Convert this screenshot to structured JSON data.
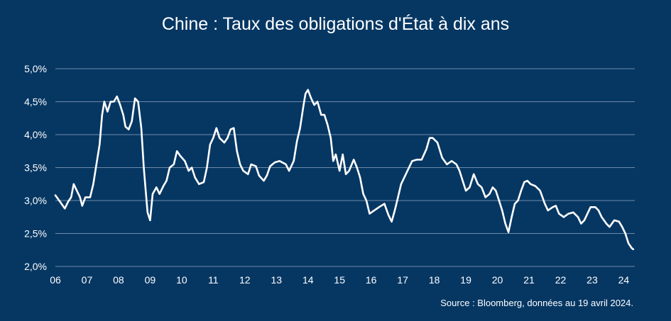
{
  "colors": {
    "background": "#063763",
    "gridline": "#6d8aa8",
    "line": "#ffffff",
    "text": "#ffffff"
  },
  "chart_data": {
    "type": "line",
    "title": "Chine : Taux des obligations d'État à dix ans",
    "source": "Source : Bloomberg, données au 19 avril 2024.",
    "xlabel": "",
    "ylabel": "",
    "xlim": [
      2006.0,
      2024.35
    ],
    "ylim": [
      2.0,
      5.0
    ],
    "grid": "horizontal",
    "legend": "none",
    "x_ticks": [
      {
        "value": 2006,
        "label": "06"
      },
      {
        "value": 2007,
        "label": "07"
      },
      {
        "value": 2008,
        "label": "08"
      },
      {
        "value": 2009,
        "label": "09"
      },
      {
        "value": 2010,
        "label": "10"
      },
      {
        "value": 2011,
        "label": "11"
      },
      {
        "value": 2012,
        "label": "12"
      },
      {
        "value": 2013,
        "label": "13"
      },
      {
        "value": 2014,
        "label": "14"
      },
      {
        "value": 2015,
        "label": "15"
      },
      {
        "value": 2016,
        "label": "16"
      },
      {
        "value": 2017,
        "label": "17"
      },
      {
        "value": 2018,
        "label": "18"
      },
      {
        "value": 2019,
        "label": "19"
      },
      {
        "value": 2020,
        "label": "20"
      },
      {
        "value": 2021,
        "label": "21"
      },
      {
        "value": 2022,
        "label": "22"
      },
      {
        "value": 2023,
        "label": "23"
      },
      {
        "value": 2024,
        "label": "24"
      }
    ],
    "y_ticks": [
      {
        "value": 2.0,
        "label": "2,0%"
      },
      {
        "value": 2.5,
        "label": "2,5%"
      },
      {
        "value": 3.0,
        "label": "3,0%"
      },
      {
        "value": 3.5,
        "label": "3,5%"
      },
      {
        "value": 4.0,
        "label": "4,0%"
      },
      {
        "value": 4.5,
        "label": "4,5%"
      },
      {
        "value": 5.0,
        "label": "5,0%"
      }
    ],
    "series": [
      {
        "values": [
          [
            2006.0,
            3.08
          ],
          [
            2006.15,
            2.98
          ],
          [
            2006.3,
            2.88
          ],
          [
            2006.4,
            2.98
          ],
          [
            2006.5,
            3.05
          ],
          [
            2006.58,
            3.25
          ],
          [
            2006.68,
            3.15
          ],
          [
            2006.78,
            3.05
          ],
          [
            2006.85,
            2.92
          ],
          [
            2006.95,
            3.05
          ],
          [
            2007.1,
            3.05
          ],
          [
            2007.2,
            3.25
          ],
          [
            2007.3,
            3.55
          ],
          [
            2007.4,
            3.85
          ],
          [
            2007.48,
            4.3
          ],
          [
            2007.55,
            4.5
          ],
          [
            2007.65,
            4.35
          ],
          [
            2007.75,
            4.5
          ],
          [
            2007.85,
            4.5
          ],
          [
            2007.95,
            4.58
          ],
          [
            2008.05,
            4.45
          ],
          [
            2008.15,
            4.3
          ],
          [
            2008.22,
            4.12
          ],
          [
            2008.32,
            4.08
          ],
          [
            2008.42,
            4.2
          ],
          [
            2008.52,
            4.55
          ],
          [
            2008.62,
            4.5
          ],
          [
            2008.72,
            4.1
          ],
          [
            2008.8,
            3.5
          ],
          [
            2008.86,
            3.15
          ],
          [
            2008.92,
            2.82
          ],
          [
            2009.0,
            2.7
          ],
          [
            2009.08,
            3.1
          ],
          [
            2009.2,
            3.2
          ],
          [
            2009.3,
            3.1
          ],
          [
            2009.42,
            3.22
          ],
          [
            2009.52,
            3.3
          ],
          [
            2009.62,
            3.5
          ],
          [
            2009.75,
            3.55
          ],
          [
            2009.85,
            3.75
          ],
          [
            2009.95,
            3.68
          ],
          [
            2010.1,
            3.6
          ],
          [
            2010.22,
            3.45
          ],
          [
            2010.32,
            3.5
          ],
          [
            2010.42,
            3.35
          ],
          [
            2010.55,
            3.25
          ],
          [
            2010.7,
            3.28
          ],
          [
            2010.8,
            3.5
          ],
          [
            2010.9,
            3.85
          ],
          [
            2011.0,
            3.95
          ],
          [
            2011.1,
            4.1
          ],
          [
            2011.2,
            3.95
          ],
          [
            2011.35,
            3.88
          ],
          [
            2011.45,
            3.95
          ],
          [
            2011.55,
            4.08
          ],
          [
            2011.65,
            4.1
          ],
          [
            2011.75,
            3.75
          ],
          [
            2011.85,
            3.55
          ],
          [
            2011.95,
            3.45
          ],
          [
            2012.1,
            3.4
          ],
          [
            2012.2,
            3.55
          ],
          [
            2012.35,
            3.52
          ],
          [
            2012.45,
            3.38
          ],
          [
            2012.6,
            3.3
          ],
          [
            2012.7,
            3.38
          ],
          [
            2012.8,
            3.52
          ],
          [
            2012.95,
            3.58
          ],
          [
            2013.1,
            3.6
          ],
          [
            2013.3,
            3.55
          ],
          [
            2013.4,
            3.45
          ],
          [
            2013.55,
            3.6
          ],
          [
            2013.65,
            3.9
          ],
          [
            2013.75,
            4.1
          ],
          [
            2013.85,
            4.42
          ],
          [
            2013.92,
            4.62
          ],
          [
            2014.0,
            4.68
          ],
          [
            2014.1,
            4.55
          ],
          [
            2014.2,
            4.45
          ],
          [
            2014.3,
            4.5
          ],
          [
            2014.42,
            4.3
          ],
          [
            2014.52,
            4.3
          ],
          [
            2014.62,
            4.15
          ],
          [
            2014.72,
            3.95
          ],
          [
            2014.8,
            3.6
          ],
          [
            2014.88,
            3.7
          ],
          [
            2015.0,
            3.45
          ],
          [
            2015.1,
            3.7
          ],
          [
            2015.2,
            3.4
          ],
          [
            2015.3,
            3.45
          ],
          [
            2015.45,
            3.62
          ],
          [
            2015.55,
            3.5
          ],
          [
            2015.65,
            3.35
          ],
          [
            2015.75,
            3.1
          ],
          [
            2015.85,
            3.0
          ],
          [
            2015.95,
            2.8
          ],
          [
            2016.1,
            2.85
          ],
          [
            2016.25,
            2.9
          ],
          [
            2016.42,
            2.95
          ],
          [
            2016.55,
            2.78
          ],
          [
            2016.65,
            2.68
          ],
          [
            2016.75,
            2.85
          ],
          [
            2016.85,
            3.05
          ],
          [
            2016.95,
            3.25
          ],
          [
            2017.05,
            3.35
          ],
          [
            2017.15,
            3.45
          ],
          [
            2017.3,
            3.6
          ],
          [
            2017.45,
            3.62
          ],
          [
            2017.6,
            3.62
          ],
          [
            2017.75,
            3.78
          ],
          [
            2017.85,
            3.95
          ],
          [
            2017.95,
            3.95
          ],
          [
            2018.1,
            3.88
          ],
          [
            2018.25,
            3.65
          ],
          [
            2018.4,
            3.55
          ],
          [
            2018.55,
            3.6
          ],
          [
            2018.7,
            3.55
          ],
          [
            2018.8,
            3.45
          ],
          [
            2018.9,
            3.3
          ],
          [
            2019.0,
            3.15
          ],
          [
            2019.12,
            3.2
          ],
          [
            2019.25,
            3.4
          ],
          [
            2019.38,
            3.25
          ],
          [
            2019.5,
            3.2
          ],
          [
            2019.62,
            3.05
          ],
          [
            2019.75,
            3.1
          ],
          [
            2019.85,
            3.2
          ],
          [
            2019.95,
            3.15
          ],
          [
            2020.05,
            3.0
          ],
          [
            2020.15,
            2.85
          ],
          [
            2020.25,
            2.65
          ],
          [
            2020.35,
            2.52
          ],
          [
            2020.45,
            2.75
          ],
          [
            2020.55,
            2.95
          ],
          [
            2020.65,
            3.0
          ],
          [
            2020.75,
            3.15
          ],
          [
            2020.85,
            3.28
          ],
          [
            2020.95,
            3.3
          ],
          [
            2021.05,
            3.25
          ],
          [
            2021.2,
            3.22
          ],
          [
            2021.35,
            3.15
          ],
          [
            2021.5,
            2.95
          ],
          [
            2021.6,
            2.85
          ],
          [
            2021.75,
            2.9
          ],
          [
            2021.85,
            2.92
          ],
          [
            2021.95,
            2.8
          ],
          [
            2022.1,
            2.75
          ],
          [
            2022.25,
            2.8
          ],
          [
            2022.4,
            2.82
          ],
          [
            2022.55,
            2.75
          ],
          [
            2022.65,
            2.65
          ],
          [
            2022.75,
            2.7
          ],
          [
            2022.85,
            2.8
          ],
          [
            2022.95,
            2.9
          ],
          [
            2023.1,
            2.9
          ],
          [
            2023.2,
            2.85
          ],
          [
            2023.3,
            2.75
          ],
          [
            2023.45,
            2.65
          ],
          [
            2023.55,
            2.6
          ],
          [
            2023.7,
            2.7
          ],
          [
            2023.85,
            2.68
          ],
          [
            2023.95,
            2.6
          ],
          [
            2024.05,
            2.5
          ],
          [
            2024.15,
            2.35
          ],
          [
            2024.25,
            2.28
          ],
          [
            2024.3,
            2.26
          ]
        ]
      }
    ]
  }
}
